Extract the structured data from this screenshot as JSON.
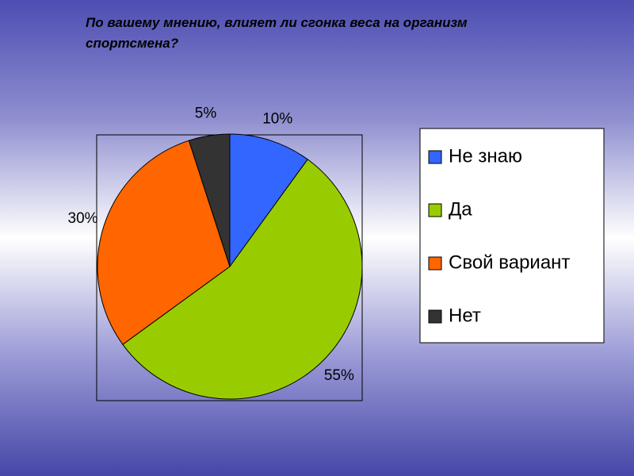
{
  "chart_data": {
    "type": "pie",
    "title": "По вашему мнению, влияет ли сгонка веса на организм спортсмена?",
    "categories": [
      "Не знаю",
      "Да",
      "Свой вариант",
      "Нет"
    ],
    "values": [
      10,
      55,
      30,
      5
    ],
    "value_labels": [
      "10%",
      "55%",
      "30%",
      "5%"
    ],
    "colors": [
      "#3366ff",
      "#99cc00",
      "#ff6600",
      "#333333"
    ],
    "legend": "right"
  }
}
